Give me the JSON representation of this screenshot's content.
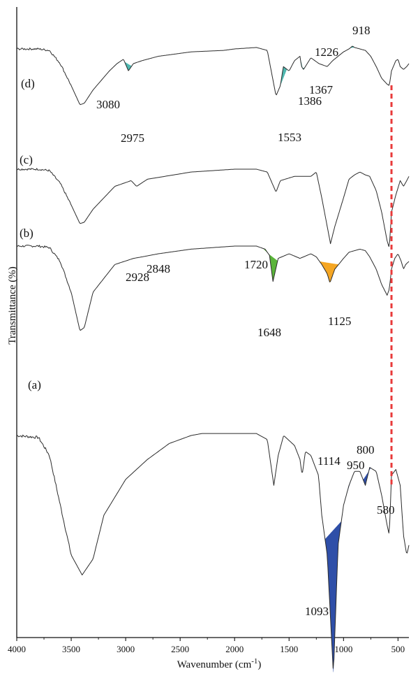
{
  "chart_data": {
    "type": "line",
    "xlabel": "Wavenumber (cm",
    "xlabel_sup": "-1",
    "xlabel_end": ")",
    "ylabel": "Transmittance (%)",
    "xlim": [
      4000,
      400
    ],
    "x_reversed": true,
    "x_ticks": [
      4000,
      3500,
      3000,
      2500,
      2000,
      1500,
      1000,
      500
    ],
    "y_ticks_shown": false,
    "grid": false,
    "legend": "none",
    "colors": {
      "curve": "#2b2b2b",
      "teal": "#4fb8b0",
      "green": "#5ab43a",
      "orange": "#f5a623",
      "blue": "#2f4fa8",
      "dashed": "#e83a3a"
    },
    "series": [
      {
        "name": "(a)",
        "points": [
          [
            4000,
            80
          ],
          [
            3800,
            79
          ],
          [
            3700,
            70
          ],
          [
            3600,
            45
          ],
          [
            3500,
            20
          ],
          [
            3400,
            10
          ],
          [
            3300,
            18
          ],
          [
            3200,
            40
          ],
          [
            3000,
            58
          ],
          [
            2800,
            68
          ],
          [
            2600,
            76
          ],
          [
            2400,
            80
          ],
          [
            2300,
            81
          ],
          [
            2000,
            81
          ],
          [
            1800,
            81
          ],
          [
            1700,
            78
          ],
          [
            1640,
            55
          ],
          [
            1600,
            70
          ],
          [
            1550,
            80
          ],
          [
            1450,
            75
          ],
          [
            1400,
            68
          ],
          [
            1380,
            60
          ],
          [
            1350,
            72
          ],
          [
            1300,
            70
          ],
          [
            1230,
            60
          ],
          [
            1200,
            40
          ],
          [
            1150,
            20
          ],
          [
            1093,
            -40
          ],
          [
            1050,
            25
          ],
          [
            1000,
            45
          ],
          [
            950,
            55
          ],
          [
            900,
            62
          ],
          [
            850,
            62
          ],
          [
            800,
            55
          ],
          [
            760,
            64
          ],
          [
            700,
            62
          ],
          [
            650,
            50
          ],
          [
            600,
            35
          ],
          [
            580,
            30
          ],
          [
            560,
            60
          ],
          [
            520,
            63
          ],
          [
            480,
            55
          ],
          [
            450,
            30
          ],
          [
            420,
            20
          ],
          [
            400,
            25
          ]
        ]
      },
      {
        "name": "(b)",
        "points": [
          [
            4000,
            100
          ],
          [
            3800,
            100
          ],
          [
            3700,
            99
          ],
          [
            3600,
            90
          ],
          [
            3500,
            70
          ],
          [
            3420,
            45
          ],
          [
            3380,
            47
          ],
          [
            3300,
            70
          ],
          [
            3100,
            88
          ],
          [
            2928,
            92
          ],
          [
            2848,
            93
          ],
          [
            2700,
            95
          ],
          [
            2400,
            98
          ],
          [
            2000,
            100
          ],
          [
            1800,
            100
          ],
          [
            1720,
            98
          ],
          [
            1680,
            94
          ],
          [
            1648,
            77
          ],
          [
            1600,
            92
          ],
          [
            1500,
            95
          ],
          [
            1400,
            92
          ],
          [
            1300,
            95
          ],
          [
            1250,
            93
          ],
          [
            1200,
            88
          ],
          [
            1150,
            82
          ],
          [
            1125,
            76
          ],
          [
            1080,
            85
          ],
          [
            1000,
            92
          ],
          [
            950,
            96
          ],
          [
            900,
            97
          ],
          [
            850,
            98
          ],
          [
            800,
            97
          ],
          [
            760,
            93
          ],
          [
            700,
            85
          ],
          [
            650,
            75
          ],
          [
            600,
            68
          ],
          [
            580,
            72
          ],
          [
            560,
            85
          ],
          [
            530,
            92
          ],
          [
            500,
            95
          ],
          [
            470,
            90
          ],
          [
            450,
            85
          ],
          [
            430,
            88
          ],
          [
            400,
            90
          ]
        ]
      },
      {
        "name": "(c)",
        "points": [
          [
            4000,
            100
          ],
          [
            3800,
            100
          ],
          [
            3700,
            99
          ],
          [
            3600,
            90
          ],
          [
            3500,
            75
          ],
          [
            3420,
            62
          ],
          [
            3380,
            63
          ],
          [
            3300,
            72
          ],
          [
            3100,
            88
          ],
          [
            2950,
            92
          ],
          [
            2900,
            88
          ],
          [
            2800,
            93
          ],
          [
            2400,
            98
          ],
          [
            2000,
            100
          ],
          [
            1800,
            100
          ],
          [
            1700,
            98
          ],
          [
            1620,
            84
          ],
          [
            1580,
            92
          ],
          [
            1450,
            95
          ],
          [
            1300,
            95
          ],
          [
            1250,
            98
          ],
          [
            1200,
            80
          ],
          [
            1150,
            60
          ],
          [
            1120,
            48
          ],
          [
            1080,
            60
          ],
          [
            1000,
            80
          ],
          [
            950,
            93
          ],
          [
            900,
            96
          ],
          [
            850,
            98
          ],
          [
            800,
            96
          ],
          [
            760,
            95
          ],
          [
            700,
            85
          ],
          [
            650,
            70
          ],
          [
            600,
            50
          ],
          [
            580,
            45
          ],
          [
            560,
            70
          ],
          [
            520,
            82
          ],
          [
            480,
            92
          ],
          [
            450,
            88
          ],
          [
            420,
            92
          ],
          [
            400,
            95
          ]
        ]
      },
      {
        "name": "(d)",
        "points": [
          [
            4000,
            100
          ],
          [
            3800,
            100
          ],
          [
            3700,
            99
          ],
          [
            3600,
            90
          ],
          [
            3500,
            75
          ],
          [
            3420,
            62
          ],
          [
            3380,
            63
          ],
          [
            3300,
            72
          ],
          [
            3150,
            85
          ],
          [
            3080,
            90
          ],
          [
            3020,
            93
          ],
          [
            2975,
            85
          ],
          [
            2930,
            90
          ],
          [
            2850,
            92
          ],
          [
            2700,
            95
          ],
          [
            2400,
            98
          ],
          [
            2100,
            99
          ],
          [
            2000,
            100
          ],
          [
            1800,
            101
          ],
          [
            1700,
            99
          ],
          [
            1620,
            68
          ],
          [
            1580,
            75
          ],
          [
            1553,
            88
          ],
          [
            1500,
            85
          ],
          [
            1450,
            92
          ],
          [
            1400,
            95
          ],
          [
            1386,
            88
          ],
          [
            1367,
            86
          ],
          [
            1300,
            94
          ],
          [
            1226,
            90
          ],
          [
            1150,
            88
          ],
          [
            1100,
            92
          ],
          [
            1050,
            95
          ],
          [
            1000,
            98
          ],
          [
            950,
            100
          ],
          [
            918,
            102
          ],
          [
            900,
            101
          ],
          [
            850,
            100
          ],
          [
            800,
            99
          ],
          [
            750,
            95
          ],
          [
            700,
            88
          ],
          [
            650,
            80
          ],
          [
            600,
            76
          ],
          [
            580,
            75
          ],
          [
            560,
            85
          ],
          [
            520,
            92
          ],
          [
            500,
            93
          ],
          [
            480,
            88
          ],
          [
            450,
            86
          ],
          [
            420,
            88
          ],
          [
            400,
            90
          ]
        ]
      }
    ],
    "series_labels": [
      "(a)",
      "(b)",
      "(c)",
      "(d)"
    ],
    "annotations": [
      {
        "text": "3080",
        "curve": "(d)",
        "color": "teal"
      },
      {
        "text": "2975",
        "curve": "(d)",
        "color": "teal"
      },
      {
        "text": "1553",
        "curve": "(d)",
        "color": "teal"
      },
      {
        "text": "1386",
        "curve": "(d)",
        "color": "teal"
      },
      {
        "text": "1367",
        "curve": "(d)",
        "color": "teal"
      },
      {
        "text": "1226",
        "curve": "(d)",
        "color": "teal"
      },
      {
        "text": "918",
        "curve": "(d)",
        "color": "teal"
      },
      {
        "text": "2928",
        "curve": "(b)",
        "color": "green"
      },
      {
        "text": "2848",
        "curve": "(b)",
        "color": "green"
      },
      {
        "text": "1720",
        "curve": "(b)",
        "color": "green"
      },
      {
        "text": "1648",
        "curve": "(b)",
        "color": "green"
      },
      {
        "text": "1125",
        "curve": "(b)",
        "color": "orange"
      },
      {
        "text": "1114",
        "curve": "(c)",
        "color": "none"
      },
      {
        "text": "950",
        "curve": "(a)",
        "color": "blue"
      },
      {
        "text": "800",
        "curve": "(a)",
        "color": "blue"
      },
      {
        "text": "580",
        "curve": "(a)",
        "color": "none"
      },
      {
        "text": "1093",
        "curve": "(a)",
        "color": "blue"
      }
    ],
    "reference_line": {
      "x": 560,
      "style": "dashed",
      "color": "dashed"
    }
  }
}
